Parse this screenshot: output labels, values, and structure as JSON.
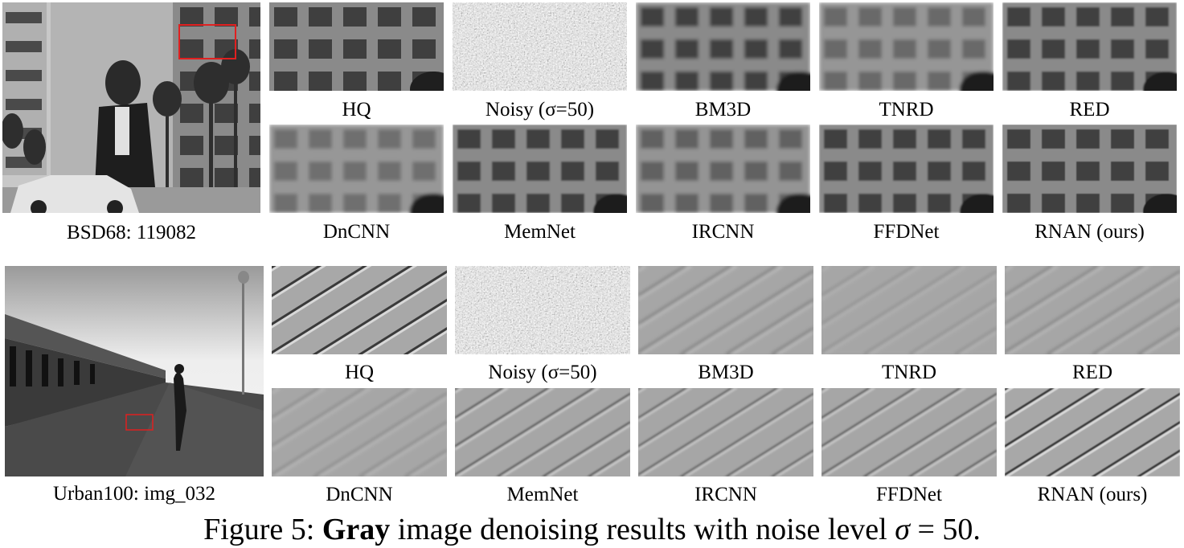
{
  "figure": {
    "caption": {
      "prefix": "Figure 5:",
      "bold": "Gray",
      "text": "image denoising results with noise level",
      "symbol": "σ",
      "value": "= 50."
    },
    "rows": [
      {
        "source_label": "BSD68: 119082",
        "panels": [
          "HQ",
          "Noisy (σ=50)",
          "BM3D",
          "TNRD",
          "RED",
          "DnCNN",
          "MemNet",
          "IRCNN",
          "FFDNet",
          "RNAN (ours)"
        ]
      },
      {
        "source_label": "Urban100: img_032",
        "panels": [
          "HQ",
          "Noisy (σ=50)",
          "BM3D",
          "TNRD",
          "RED",
          "DnCNN",
          "MemNet",
          "IRCNN",
          "FFDNet",
          "RNAN (ours)"
        ]
      }
    ]
  },
  "colors": {
    "highlight_box": "#e02020"
  }
}
